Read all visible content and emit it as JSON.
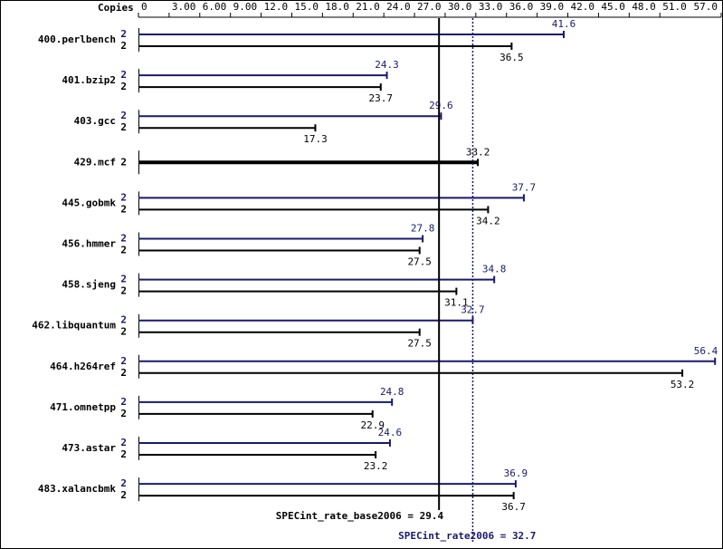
{
  "chart_data": {
    "type": "hbar-pair",
    "copies_label": "Copies",
    "categories": [
      "400.perlbench",
      "401.bzip2",
      "403.gcc",
      "429.mcf",
      "445.gobmk",
      "456.hmmer",
      "458.sjeng",
      "462.libquantum",
      "464.h264ref",
      "471.omnetpp",
      "473.astar",
      "483.xalancbmk"
    ],
    "series": [
      {
        "color": "#191970",
        "copies": [
          2,
          2,
          2,
          null,
          2,
          2,
          2,
          2,
          2,
          2,
          2,
          2
        ],
        "values": [
          41.6,
          24.3,
          29.6,
          null,
          37.7,
          27.8,
          34.8,
          32.7,
          56.4,
          24.8,
          24.6,
          36.9
        ]
      },
      {
        "color": "#000000",
        "copies": [
          2,
          2,
          2,
          2,
          2,
          2,
          2,
          2,
          2,
          2,
          2,
          2
        ],
        "values": [
          36.5,
          23.7,
          17.3,
          33.2,
          34.2,
          27.5,
          31.1,
          27.5,
          53.2,
          22.9,
          23.2,
          36.7
        ]
      }
    ],
    "xlim": [
      0,
      57
    ],
    "xticks": [
      0,
      {
        "value": 3,
        "label": "3.00"
      },
      {
        "value": 6,
        "label": "6.00"
      },
      {
        "value": 9,
        "label": "9.00"
      },
      {
        "value": 12,
        "label": "12.0"
      },
      {
        "value": 15,
        "label": "15.0"
      },
      {
        "value": 18,
        "label": "18.0"
      },
      {
        "value": 21,
        "label": "21.0"
      },
      {
        "value": 24,
        "label": "24.0"
      },
      {
        "value": 27,
        "label": "27.0"
      },
      {
        "value": 30,
        "label": "30.0"
      },
      {
        "value": 33,
        "label": "33.0"
      },
      {
        "value": 36,
        "label": "36.0"
      },
      {
        "value": 39,
        "label": "39.0"
      },
      {
        "value": 42,
        "label": "42.0"
      },
      {
        "value": 45,
        "label": "45.0"
      },
      {
        "value": 48,
        "label": "48.0"
      },
      {
        "value": 51,
        "label": "51.0"
      },
      {
        "value": 57,
        "label": "57.0"
      }
    ],
    "reference_lines": [
      {
        "label": "SPECint_rate_base2006 = 29.4",
        "value": 29.4,
        "color": "#000000"
      },
      {
        "label": "SPECint_rate2006 = 32.7",
        "value": 32.7,
        "color": "#191970"
      }
    ]
  }
}
